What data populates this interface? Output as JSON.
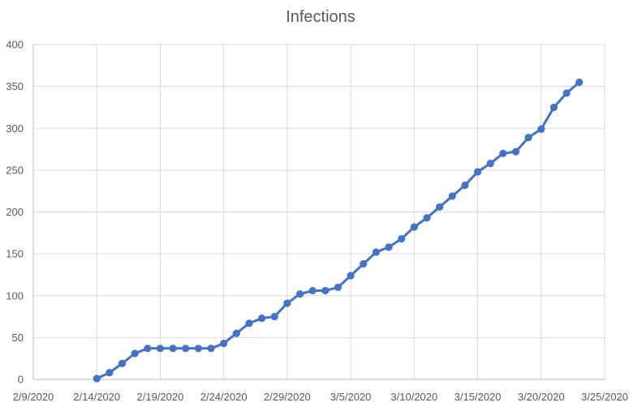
{
  "chart_data": {
    "type": "line",
    "title": "Infections",
    "xlabel": "",
    "ylabel": "",
    "x_axis": {
      "type": "date",
      "range": [
        "2/9/2020",
        "3/25/2020"
      ],
      "tick_labels": [
        "2/9/2020",
        "2/14/2020",
        "2/19/2020",
        "2/24/2020",
        "2/29/2020",
        "3/5/2020",
        "3/10/2020",
        "3/15/2020",
        "3/20/2020",
        "3/25/2020"
      ]
    },
    "y_axis": {
      "range": [
        0,
        400
      ],
      "tick_labels": [
        "0",
        "50",
        "100",
        "150",
        "200",
        "250",
        "300",
        "350",
        "400"
      ]
    },
    "grid": true,
    "legend": "none",
    "series": [
      {
        "color": "#4472c4",
        "marker": "circle",
        "points": [
          {
            "x": "2/14/2020",
            "y": 1
          },
          {
            "x": "2/15/2020",
            "y": 8
          },
          {
            "x": "2/16/2020",
            "y": 19
          },
          {
            "x": "2/17/2020",
            "y": 31
          },
          {
            "x": "2/18/2020",
            "y": 37
          },
          {
            "x": "2/19/2020",
            "y": 37
          },
          {
            "x": "2/20/2020",
            "y": 37
          },
          {
            "x": "2/21/2020",
            "y": 37
          },
          {
            "x": "2/22/2020",
            "y": 37
          },
          {
            "x": "2/23/2020",
            "y": 37
          },
          {
            "x": "2/24/2020",
            "y": 43
          },
          {
            "x": "2/25/2020",
            "y": 55
          },
          {
            "x": "2/26/2020",
            "y": 67
          },
          {
            "x": "2/27/2020",
            "y": 73
          },
          {
            "x": "2/28/2020",
            "y": 75
          },
          {
            "x": "2/29/2020",
            "y": 91
          },
          {
            "x": "3/1/2020",
            "y": 102
          },
          {
            "x": "3/2/2020",
            "y": 106
          },
          {
            "x": "3/3/2020",
            "y": 106
          },
          {
            "x": "3/4/2020",
            "y": 110
          },
          {
            "x": "3/5/2020",
            "y": 124
          },
          {
            "x": "3/6/2020",
            "y": 138
          },
          {
            "x": "3/7/2020",
            "y": 152
          },
          {
            "x": "3/8/2020",
            "y": 158
          },
          {
            "x": "3/9/2020",
            "y": 168
          },
          {
            "x": "3/10/2020",
            "y": 182
          },
          {
            "x": "3/11/2020",
            "y": 193
          },
          {
            "x": "3/12/2020",
            "y": 206
          },
          {
            "x": "3/13/2020",
            "y": 219
          },
          {
            "x": "3/14/2020",
            "y": 232
          },
          {
            "x": "3/15/2020",
            "y": 248
          },
          {
            "x": "3/16/2020",
            "y": 258
          },
          {
            "x": "3/17/2020",
            "y": 270
          },
          {
            "x": "3/18/2020",
            "y": 272
          },
          {
            "x": "3/19/2020",
            "y": 289
          },
          {
            "x": "3/20/2020",
            "y": 299
          },
          {
            "x": "3/21/2020",
            "y": 325
          },
          {
            "x": "3/22/2020",
            "y": 342
          },
          {
            "x": "3/23/2020",
            "y": 355
          }
        ]
      }
    ]
  }
}
